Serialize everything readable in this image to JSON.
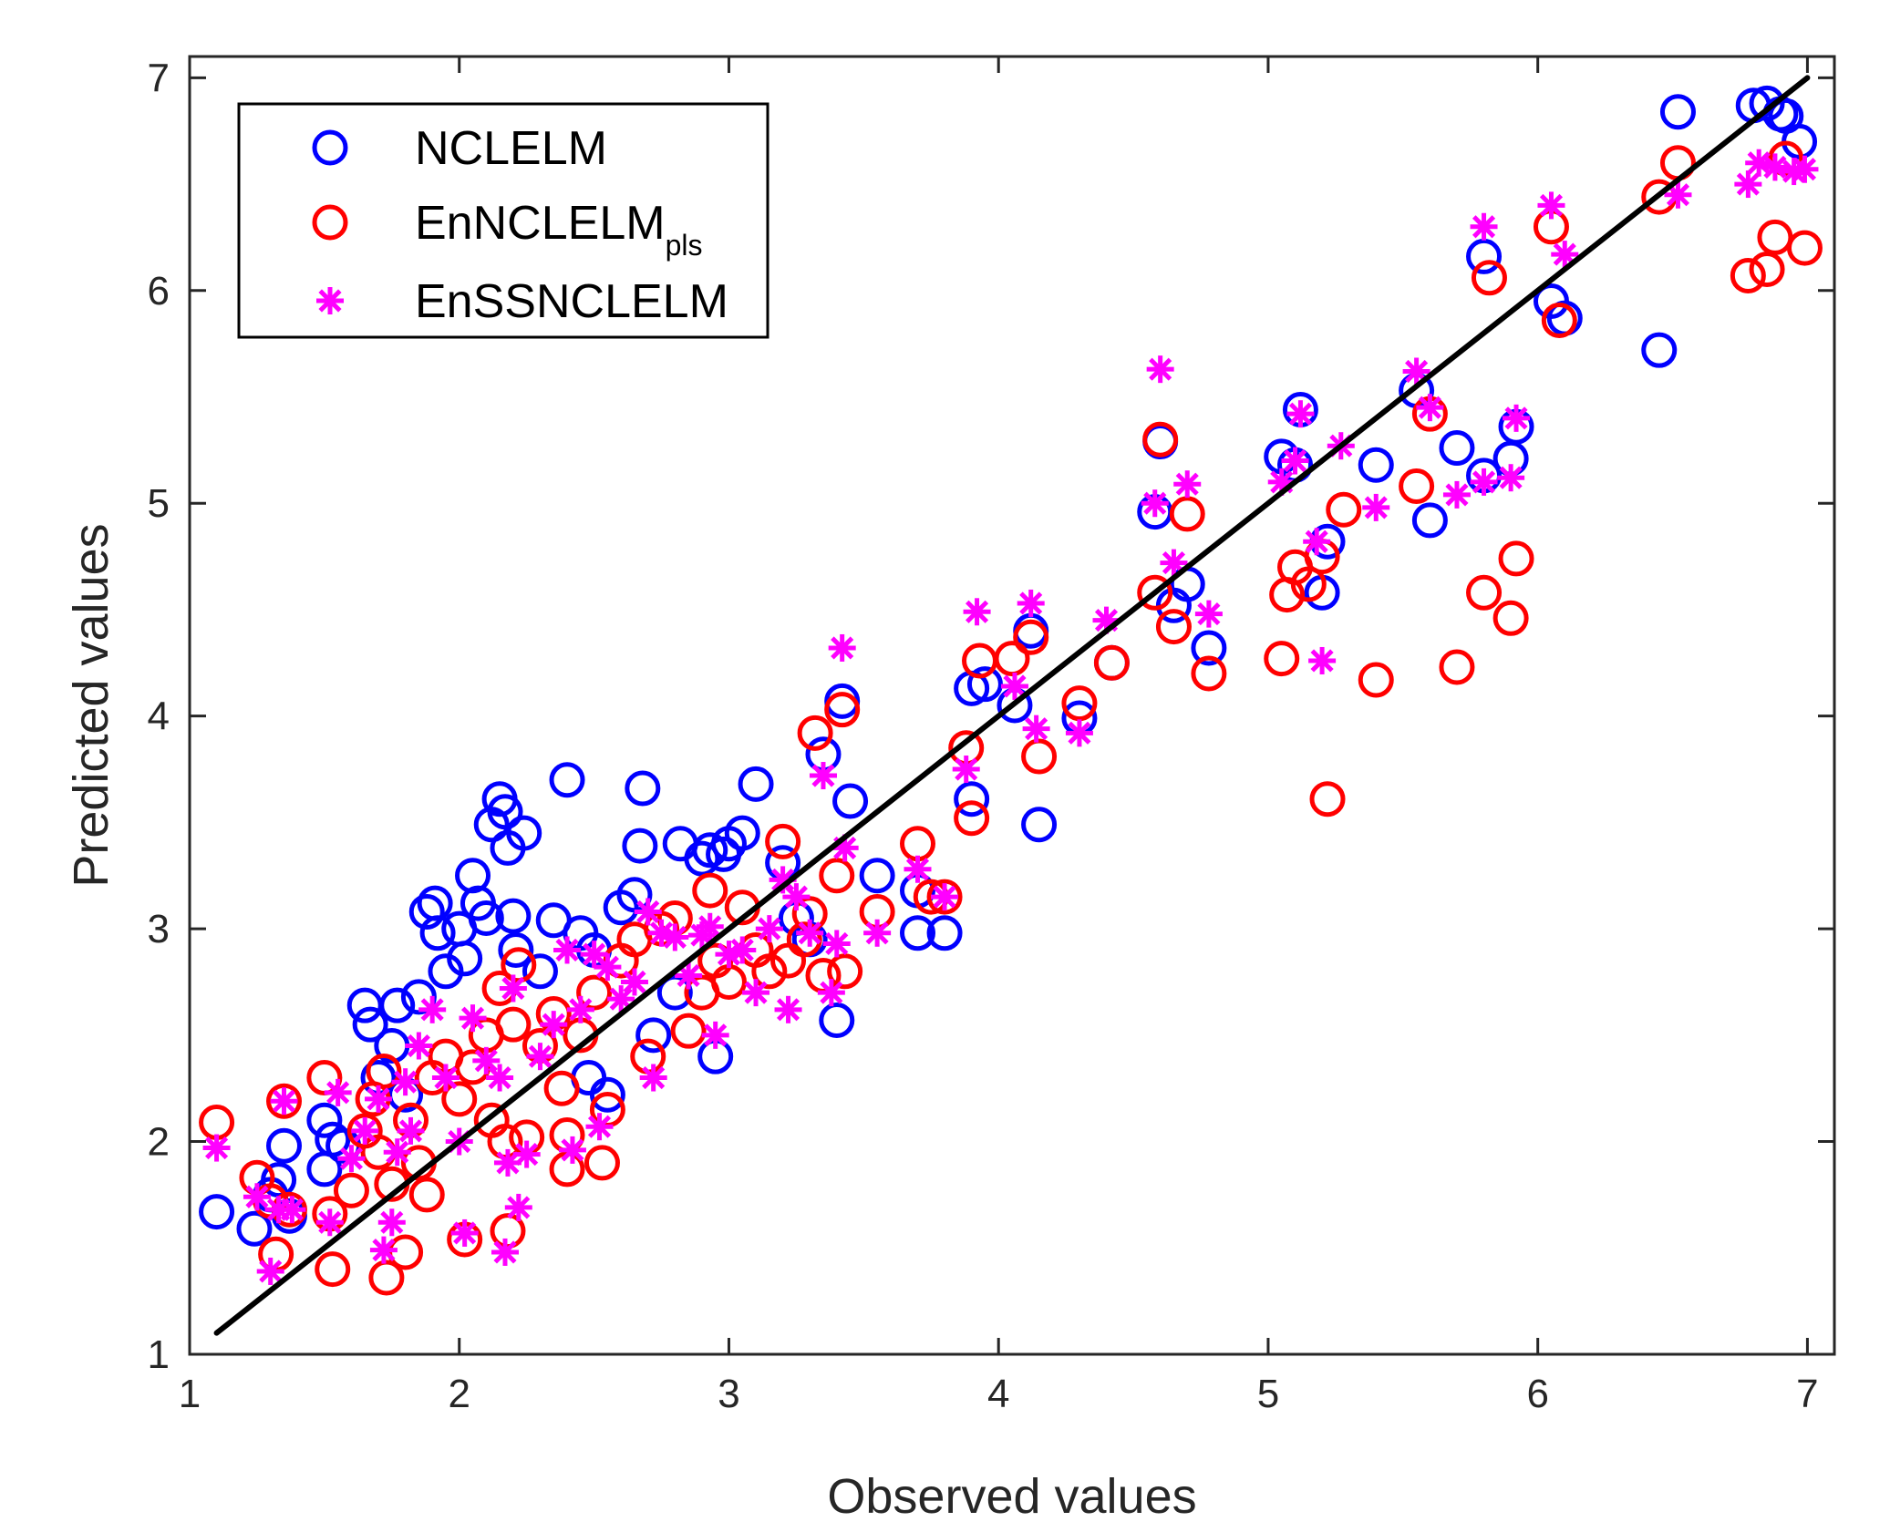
{
  "chart_data": {
    "type": "scatter",
    "xlabel": "Observed values",
    "ylabel": "Predicted values",
    "xlim": [
      1,
      7.1
    ],
    "ylim": [
      1,
      7.1
    ],
    "xticks": [
      1,
      2,
      3,
      4,
      5,
      6,
      7
    ],
    "yticks": [
      1,
      2,
      3,
      4,
      5,
      6,
      7
    ],
    "grid": false,
    "legend_position": "top-left",
    "reference_line": {
      "x": [
        1.1,
        7.0
      ],
      "y": [
        1.1,
        7.0
      ],
      "color": "#000000"
    },
    "series": [
      {
        "name": "NCLELM",
        "marker": "circle",
        "color": "#0000ff",
        "points": [
          [
            1.1,
            1.67
          ],
          [
            1.24,
            1.59
          ],
          [
            1.3,
            1.75
          ],
          [
            1.33,
            1.82
          ],
          [
            1.35,
            1.98
          ],
          [
            1.37,
            1.65
          ],
          [
            1.5,
            2.1
          ],
          [
            1.5,
            1.87
          ],
          [
            1.53,
            2.01
          ],
          [
            1.57,
            1.98
          ],
          [
            1.65,
            2.64
          ],
          [
            1.67,
            2.55
          ],
          [
            1.7,
            2.3
          ],
          [
            1.75,
            2.45
          ],
          [
            1.77,
            2.64
          ],
          [
            1.8,
            2.22
          ],
          [
            1.85,
            2.68
          ],
          [
            1.88,
            3.08
          ],
          [
            1.91,
            3.12
          ],
          [
            1.92,
            2.98
          ],
          [
            1.95,
            2.8
          ],
          [
            2.0,
            3.0
          ],
          [
            2.02,
            2.86
          ],
          [
            2.05,
            3.25
          ],
          [
            2.07,
            3.12
          ],
          [
            2.1,
            3.05
          ],
          [
            2.12,
            3.49
          ],
          [
            2.15,
            3.61
          ],
          [
            2.17,
            3.55
          ],
          [
            2.18,
            3.38
          ],
          [
            2.2,
            3.06
          ],
          [
            2.21,
            2.9
          ],
          [
            2.24,
            3.45
          ],
          [
            2.3,
            2.8
          ],
          [
            2.35,
            3.04
          ],
          [
            2.4,
            3.7
          ],
          [
            2.45,
            2.98
          ],
          [
            2.48,
            2.3
          ],
          [
            2.5,
            2.9
          ],
          [
            2.55,
            2.22
          ],
          [
            2.6,
            3.1
          ],
          [
            2.65,
            3.16
          ],
          [
            2.67,
            3.39
          ],
          [
            2.68,
            3.66
          ],
          [
            2.72,
            2.5
          ],
          [
            2.8,
            2.7
          ],
          [
            2.82,
            3.4
          ],
          [
            2.9,
            3.33
          ],
          [
            2.93,
            3.37
          ],
          [
            2.95,
            2.4
          ],
          [
            2.98,
            3.35
          ],
          [
            3.0,
            3.4
          ],
          [
            3.05,
            3.45
          ],
          [
            3.1,
            3.68
          ],
          [
            3.2,
            3.31
          ],
          [
            3.25,
            3.05
          ],
          [
            3.3,
            2.95
          ],
          [
            3.35,
            3.82
          ],
          [
            3.4,
            2.57
          ],
          [
            3.42,
            4.07
          ],
          [
            3.45,
            3.6
          ],
          [
            3.55,
            3.25
          ],
          [
            3.7,
            3.18
          ],
          [
            3.7,
            2.98
          ],
          [
            3.8,
            2.98
          ],
          [
            3.9,
            3.61
          ],
          [
            3.9,
            4.13
          ],
          [
            3.95,
            4.15
          ],
          [
            4.06,
            4.05
          ],
          [
            4.12,
            4.4
          ],
          [
            4.15,
            3.49
          ],
          [
            4.3,
            3.99
          ],
          [
            4.42,
            4.25
          ],
          [
            4.58,
            4.96
          ],
          [
            4.6,
            5.29
          ],
          [
            4.65,
            4.52
          ],
          [
            4.7,
            4.62
          ],
          [
            4.78,
            4.32
          ],
          [
            5.05,
            5.22
          ],
          [
            5.1,
            5.18
          ],
          [
            5.12,
            5.44
          ],
          [
            5.2,
            4.58
          ],
          [
            5.22,
            4.82
          ],
          [
            5.4,
            5.18
          ],
          [
            5.55,
            5.53
          ],
          [
            5.6,
            4.92
          ],
          [
            5.7,
            5.26
          ],
          [
            5.8,
            5.13
          ],
          [
            5.8,
            6.16
          ],
          [
            5.9,
            5.21
          ],
          [
            5.92,
            5.36
          ],
          [
            6.05,
            5.95
          ],
          [
            6.1,
            5.87
          ],
          [
            6.45,
            5.72
          ],
          [
            6.52,
            6.84
          ],
          [
            6.8,
            6.87
          ],
          [
            6.85,
            6.88
          ],
          [
            6.9,
            6.83
          ],
          [
            6.92,
            6.82
          ],
          [
            6.97,
            6.7
          ]
        ]
      },
      {
        "name": "EnNCLELMpls",
        "marker": "circle",
        "color": "#ff0000",
        "points": [
          [
            1.1,
            2.09
          ],
          [
            1.25,
            1.83
          ],
          [
            1.3,
            1.72
          ],
          [
            1.32,
            1.47
          ],
          [
            1.35,
            2.19
          ],
          [
            1.37,
            1.68
          ],
          [
            1.5,
            2.3
          ],
          [
            1.52,
            1.66
          ],
          [
            1.53,
            1.4
          ],
          [
            1.6,
            1.77
          ],
          [
            1.65,
            2.05
          ],
          [
            1.68,
            2.2
          ],
          [
            1.7,
            1.95
          ],
          [
            1.72,
            2.33
          ],
          [
            1.73,
            1.36
          ],
          [
            1.75,
            1.8
          ],
          [
            1.8,
            1.48
          ],
          [
            1.82,
            2.1
          ],
          [
            1.85,
            1.9
          ],
          [
            1.88,
            1.75
          ],
          [
            1.9,
            2.3
          ],
          [
            1.95,
            2.4
          ],
          [
            2.0,
            2.2
          ],
          [
            2.02,
            1.54
          ],
          [
            2.05,
            2.35
          ],
          [
            2.1,
            2.5
          ],
          [
            2.12,
            2.1
          ],
          [
            2.15,
            2.72
          ],
          [
            2.17,
            2.0
          ],
          [
            2.18,
            1.58
          ],
          [
            2.2,
            2.55
          ],
          [
            2.22,
            2.83
          ],
          [
            2.25,
            2.02
          ],
          [
            2.3,
            2.45
          ],
          [
            2.35,
            2.6
          ],
          [
            2.38,
            2.25
          ],
          [
            2.4,
            2.03
          ],
          [
            2.4,
            1.87
          ],
          [
            2.45,
            2.5
          ],
          [
            2.5,
            2.7
          ],
          [
            2.53,
            1.9
          ],
          [
            2.55,
            2.15
          ],
          [
            2.6,
            2.85
          ],
          [
            2.65,
            2.95
          ],
          [
            2.7,
            2.4
          ],
          [
            2.75,
            3.0
          ],
          [
            2.8,
            3.05
          ],
          [
            2.85,
            2.52
          ],
          [
            2.9,
            2.7
          ],
          [
            2.93,
            3.18
          ],
          [
            2.95,
            2.85
          ],
          [
            3.0,
            2.75
          ],
          [
            3.05,
            3.1
          ],
          [
            3.1,
            2.9
          ],
          [
            3.15,
            2.8
          ],
          [
            3.2,
            3.41
          ],
          [
            3.22,
            2.85
          ],
          [
            3.28,
            2.95
          ],
          [
            3.3,
            3.07
          ],
          [
            3.32,
            3.92
          ],
          [
            3.35,
            2.78
          ],
          [
            3.4,
            3.25
          ],
          [
            3.42,
            4.03
          ],
          [
            3.43,
            2.8
          ],
          [
            3.55,
            3.08
          ],
          [
            3.7,
            3.4
          ],
          [
            3.75,
            3.15
          ],
          [
            3.8,
            3.15
          ],
          [
            3.88,
            3.85
          ],
          [
            3.9,
            3.52
          ],
          [
            3.93,
            4.26
          ],
          [
            4.05,
            4.27
          ],
          [
            4.12,
            4.37
          ],
          [
            4.15,
            3.81
          ],
          [
            4.3,
            4.06
          ],
          [
            4.42,
            4.25
          ],
          [
            4.58,
            4.58
          ],
          [
            4.6,
            5.3
          ],
          [
            4.65,
            4.42
          ],
          [
            4.7,
            4.95
          ],
          [
            4.78,
            4.2
          ],
          [
            5.05,
            4.27
          ],
          [
            5.07,
            4.57
          ],
          [
            5.1,
            4.7
          ],
          [
            5.15,
            4.62
          ],
          [
            5.2,
            4.75
          ],
          [
            5.22,
            3.61
          ],
          [
            5.28,
            4.97
          ],
          [
            5.4,
            4.17
          ],
          [
            5.55,
            5.08
          ],
          [
            5.6,
            5.42
          ],
          [
            5.7,
            4.23
          ],
          [
            5.8,
            4.58
          ],
          [
            5.82,
            6.06
          ],
          [
            5.9,
            4.46
          ],
          [
            5.92,
            4.74
          ],
          [
            6.05,
            6.3
          ],
          [
            6.08,
            5.86
          ],
          [
            6.45,
            6.44
          ],
          [
            6.52,
            6.6
          ],
          [
            6.78,
            6.07
          ],
          [
            6.85,
            6.1
          ],
          [
            6.88,
            6.25
          ],
          [
            6.92,
            6.62
          ],
          [
            6.99,
            6.2
          ]
        ]
      },
      {
        "name": "EnSSNCLELM",
        "marker": "asterisk",
        "color": "#ff00ff",
        "points": [
          [
            1.1,
            1.97
          ],
          [
            1.25,
            1.74
          ],
          [
            1.3,
            1.39
          ],
          [
            1.33,
            1.68
          ],
          [
            1.35,
            2.19
          ],
          [
            1.38,
            1.68
          ],
          [
            1.52,
            1.62
          ],
          [
            1.55,
            2.23
          ],
          [
            1.6,
            1.92
          ],
          [
            1.65,
            2.05
          ],
          [
            1.7,
            2.2
          ],
          [
            1.72,
            1.49
          ],
          [
            1.75,
            1.62
          ],
          [
            1.77,
            1.95
          ],
          [
            1.8,
            2.28
          ],
          [
            1.82,
            2.05
          ],
          [
            1.85,
            2.45
          ],
          [
            1.9,
            2.62
          ],
          [
            1.95,
            2.3
          ],
          [
            2.0,
            2.0
          ],
          [
            2.02,
            1.57
          ],
          [
            2.05,
            2.58
          ],
          [
            2.1,
            2.38
          ],
          [
            2.15,
            2.3
          ],
          [
            2.17,
            1.48
          ],
          [
            2.18,
            1.9
          ],
          [
            2.2,
            2.72
          ],
          [
            2.22,
            1.69
          ],
          [
            2.25,
            1.94
          ],
          [
            2.3,
            2.4
          ],
          [
            2.35,
            2.55
          ],
          [
            2.4,
            2.9
          ],
          [
            2.42,
            1.96
          ],
          [
            2.45,
            2.62
          ],
          [
            2.5,
            2.88
          ],
          [
            2.52,
            2.07
          ],
          [
            2.55,
            2.82
          ],
          [
            2.6,
            2.67
          ],
          [
            2.65,
            2.75
          ],
          [
            2.7,
            3.08
          ],
          [
            2.72,
            2.3
          ],
          [
            2.75,
            2.98
          ],
          [
            2.8,
            2.96
          ],
          [
            2.85,
            2.78
          ],
          [
            2.9,
            2.97
          ],
          [
            2.93,
            3.01
          ],
          [
            2.95,
            2.5
          ],
          [
            3.0,
            2.88
          ],
          [
            3.05,
            2.9
          ],
          [
            3.1,
            2.7
          ],
          [
            3.15,
            3.0
          ],
          [
            3.2,
            3.23
          ],
          [
            3.22,
            2.62
          ],
          [
            3.25,
            3.15
          ],
          [
            3.3,
            2.98
          ],
          [
            3.35,
            3.72
          ],
          [
            3.38,
            2.7
          ],
          [
            3.4,
            2.93
          ],
          [
            3.42,
            4.32
          ],
          [
            3.43,
            3.38
          ],
          [
            3.55,
            2.98
          ],
          [
            3.7,
            3.28
          ],
          [
            3.8,
            3.15
          ],
          [
            3.88,
            3.75
          ],
          [
            3.92,
            4.49
          ],
          [
            4.06,
            4.14
          ],
          [
            4.12,
            4.53
          ],
          [
            4.14,
            3.94
          ],
          [
            4.3,
            3.92
          ],
          [
            4.4,
            4.45
          ],
          [
            4.58,
            5.0
          ],
          [
            4.6,
            5.63
          ],
          [
            4.65,
            4.72
          ],
          [
            4.7,
            5.09
          ],
          [
            4.78,
            4.48
          ],
          [
            5.05,
            5.1
          ],
          [
            5.1,
            5.2
          ],
          [
            5.12,
            5.42
          ],
          [
            5.18,
            4.82
          ],
          [
            5.2,
            4.26
          ],
          [
            5.27,
            5.27
          ],
          [
            5.4,
            4.98
          ],
          [
            5.55,
            5.62
          ],
          [
            5.6,
            5.45
          ],
          [
            5.7,
            5.04
          ],
          [
            5.8,
            5.1
          ],
          [
            5.8,
            6.3
          ],
          [
            5.9,
            5.12
          ],
          [
            5.92,
            5.4
          ],
          [
            6.05,
            6.4
          ],
          [
            6.1,
            6.17
          ],
          [
            6.52,
            6.45
          ],
          [
            6.78,
            6.5
          ],
          [
            6.82,
            6.6
          ],
          [
            6.88,
            6.58
          ],
          [
            6.95,
            6.56
          ],
          [
            6.99,
            6.57
          ]
        ]
      }
    ]
  }
}
